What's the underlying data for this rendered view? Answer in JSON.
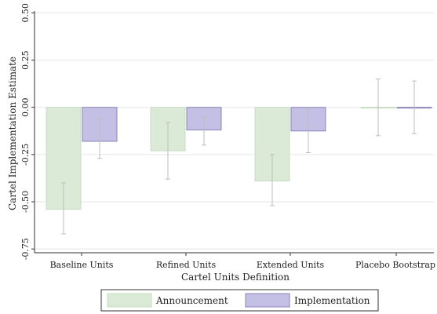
{
  "colors": {
    "announcement_fill": "#dbead6",
    "announcement_stroke": "#c9dcc3",
    "implementation_fill": "#c4bfe4",
    "implementation_stroke": "#8a84b8",
    "error_bar": "#bdbdbd",
    "grid": "#e6e6e6",
    "axis": "#333333"
  },
  "chart_data": {
    "type": "bar",
    "title": "",
    "xlabel": "Cartel Units Definition",
    "ylabel": "Cartel Implementation Estimate",
    "ylim": [
      -0.77,
      0.51
    ],
    "yticks": [
      0.5,
      0.25,
      0.0,
      -0.25,
      -0.5,
      -0.75
    ],
    "ytick_labels": [
      "0.50",
      "0.25",
      "0.00",
      "-0.25",
      "-0.50",
      "-0.75"
    ],
    "grid": true,
    "legend_position": "bottom",
    "categories": [
      "Baseline Units",
      "Refined Units",
      "Extended Units",
      "Placebo Bootstrap"
    ],
    "series": [
      {
        "name": "Announcement",
        "values": [
          -0.54,
          -0.23,
          -0.39,
          0.0
        ],
        "ci_low": [
          -0.67,
          -0.38,
          -0.52,
          -0.15
        ],
        "ci_high": [
          -0.4,
          -0.08,
          -0.25,
          0.15
        ]
      },
      {
        "name": "Implementation",
        "values": [
          -0.18,
          -0.12,
          -0.125,
          0.0
        ],
        "ci_low": [
          -0.27,
          -0.2,
          -0.24,
          -0.14
        ],
        "ci_high": [
          -0.06,
          -0.05,
          -0.01,
          0.14
        ]
      }
    ]
  }
}
